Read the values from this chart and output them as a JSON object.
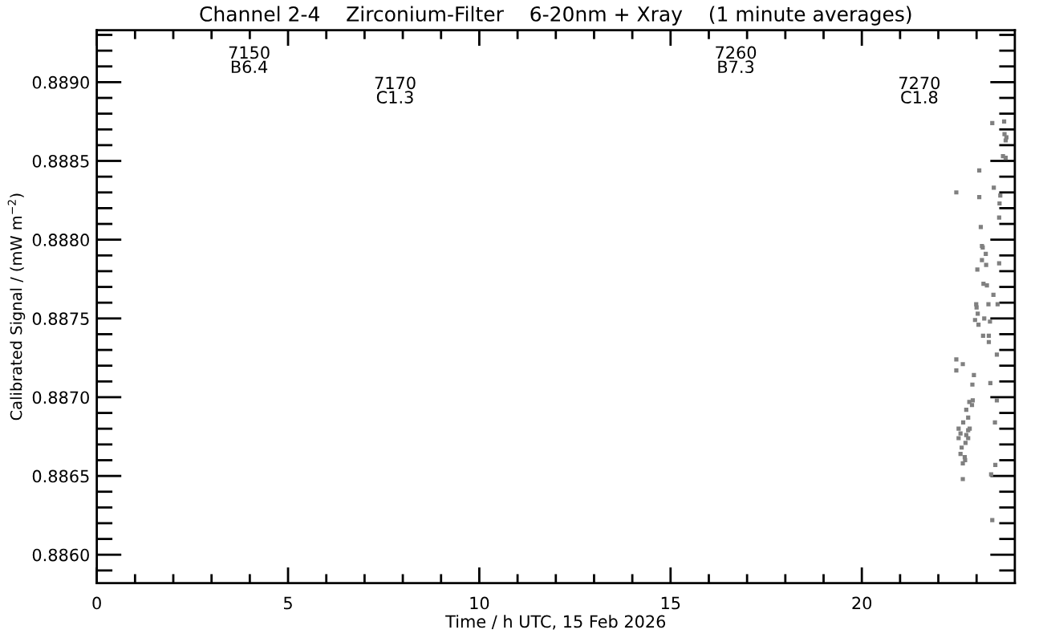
{
  "chart_data": {
    "type": "scatter",
    "title": "Channel 2-4    Zirconium-Filter    6-20nm + Xray    (1 minute averages)",
    "xlabel": "Time / h UTC, 15 Feb 2026",
    "ylabel": "Calibrated Signal / (mW m$^{−2}$)",
    "marker": "square",
    "x": [
      23.41,
      23.72,
      23.73,
      23.78,
      23.76,
      23.69,
      23.76,
      23.07,
      23.45,
      23.62,
      22.47,
      23.07,
      23.6,
      23.59,
      23.11,
      23.14,
      23.24,
      23.14,
      23.25,
      23.59,
      23.02,
      23.18,
      23.44,
      22.99,
      23.31,
      23.55,
      23.03,
      22.96,
      23.2,
      23.35,
      23.05,
      23.17,
      23.32,
      23.32,
      23.53,
      22.47,
      22.64,
      22.47,
      22.93,
      23.36,
      22.89,
      23.53,
      22.9,
      22.81,
      22.88,
      22.73,
      22.78,
      23.48,
      22.65,
      22.82,
      22.53,
      22.58,
      22.73,
      22.53,
      22.78,
      22.71,
      22.61,
      22.58,
      22.69,
      22.64,
      23.49,
      23.38,
      22.64,
      23.41,
      23.16,
      23.27,
      23.0,
      22.78,
      22.7
    ],
    "series": [
      {
        "color": "#808080",
        "values": [
          0.88874,
          0.88875,
          0.88867,
          0.88865,
          0.88863,
          0.88853,
          0.88852,
          0.88844,
          0.88833,
          0.88828,
          0.8883,
          0.88827,
          0.88823,
          0.88814,
          0.88808,
          0.88796,
          0.88791,
          0.88787,
          0.88784,
          0.88785,
          0.88781,
          0.88772,
          0.88765,
          0.88759,
          0.88759,
          0.88759,
          0.88753,
          0.88749,
          0.8875,
          0.88748,
          0.88746,
          0.88739,
          0.88739,
          0.88735,
          0.88727,
          0.88724,
          0.88721,
          0.88717,
          0.88714,
          0.88709,
          0.88708,
          0.88698,
          0.88698,
          0.88697,
          0.88695,
          0.88692,
          0.88687,
          0.88684,
          0.88684,
          0.8868,
          0.8868,
          0.88677,
          0.88676,
          0.88674,
          0.88674,
          0.88671,
          0.88668,
          0.88664,
          0.88662,
          0.88658,
          0.88657,
          0.88651,
          0.88648,
          0.88622,
          0.88795,
          0.88771,
          0.88757,
          0.88679,
          0.8866
        ]
      }
    ],
    "xlim": [
      0,
      24
    ],
    "xticks": [
      0,
      {
        "value": 1,
        "label": null
      },
      {
        "value": 2,
        "label": null
      },
      {
        "value": 3,
        "label": null
      },
      {
        "value": 4,
        "label": null
      },
      5,
      {
        "value": 6,
        "label": null
      },
      {
        "value": 7,
        "label": null
      },
      {
        "value": 8,
        "label": null
      },
      {
        "value": 9,
        "label": null
      },
      10,
      {
        "value": 11,
        "label": null
      },
      {
        "value": 12,
        "label": null
      },
      {
        "value": 13,
        "label": null
      },
      {
        "value": 14,
        "label": null
      },
      15,
      {
        "value": 16,
        "label": null
      },
      {
        "value": 17,
        "label": null
      },
      {
        "value": 18,
        "label": null
      },
      {
        "value": 19,
        "label": null
      },
      20,
      {
        "value": 21,
        "label": null
      },
      {
        "value": 22,
        "label": null
      },
      {
        "value": 23,
        "label": null
      }
    ],
    "ylim": [
      0.88582,
      0.88933
    ],
    "yticks": [
      {
        "value": 0.8859,
        "label": null
      },
      {
        "value": 0.886,
        "label": "0.8860"
      },
      {
        "value": 0.8861,
        "label": null
      },
      {
        "value": 0.8862,
        "label": null
      },
      {
        "value": 0.8863,
        "label": null
      },
      {
        "value": 0.8864,
        "label": null
      },
      {
        "value": 0.8865,
        "label": "0.8865"
      },
      {
        "value": 0.8866,
        "label": null
      },
      {
        "value": 0.8867,
        "label": null
      },
      {
        "value": 0.8868,
        "label": null
      },
      {
        "value": 0.8869,
        "label": null
      },
      {
        "value": 0.887,
        "label": "0.8870"
      },
      {
        "value": 0.8871,
        "label": null
      },
      {
        "value": 0.8872,
        "label": null
      },
      {
        "value": 0.8873,
        "label": null
      },
      {
        "value": 0.8874,
        "label": null
      },
      {
        "value": 0.8875,
        "label": "0.8875"
      },
      {
        "value": 0.8876,
        "label": null
      },
      {
        "value": 0.8877,
        "label": null
      },
      {
        "value": 0.8878,
        "label": null
      },
      {
        "value": 0.8879,
        "label": null
      },
      {
        "value": 0.888,
        "label": "0.8880"
      },
      {
        "value": 0.8881,
        "label": null
      },
      {
        "value": 0.8882,
        "label": null
      },
      {
        "value": 0.8883,
        "label": null
      },
      {
        "value": 0.8884,
        "label": null
      },
      {
        "value": 0.8885,
        "label": "0.8885"
      },
      {
        "value": 0.8886,
        "label": null
      },
      {
        "value": 0.8887,
        "label": null
      },
      {
        "value": 0.8888,
        "label": null
      },
      {
        "value": 0.8889,
        "label": null
      },
      {
        "value": 0.889,
        "label": "0.8890"
      },
      {
        "value": 0.8891,
        "label": null
      },
      {
        "value": 0.8892,
        "label": null
      },
      {
        "value": 0.8893,
        "label": null
      }
    ],
    "annotations": [
      "7150\nB6.4",
      "7170\nC1.3",
      "7260\nB7.3",
      "7270\nC1.8"
    ]
  }
}
